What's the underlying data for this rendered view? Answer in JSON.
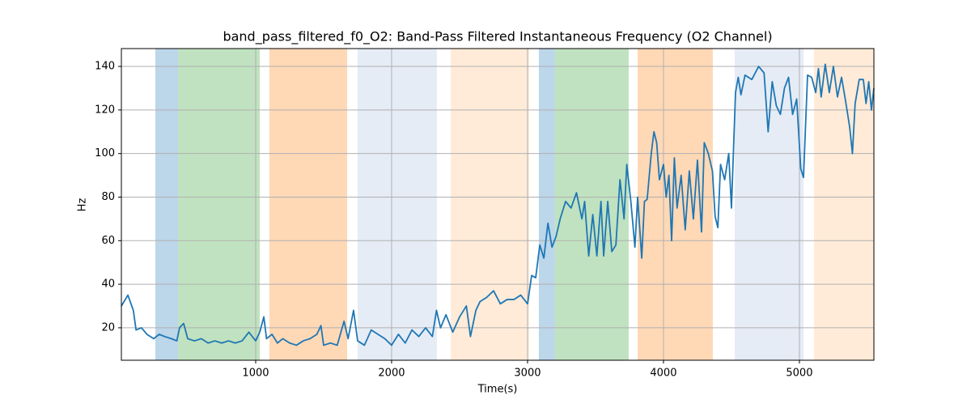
{
  "chart_data": {
    "type": "line",
    "title": "band_pass_filtered_f0_O2: Band-Pass Filtered Instantaneous Frequency (O2 Channel)",
    "x_label": "Time(s)",
    "y_label": "Hz",
    "xlim": [
      12,
      5548
    ],
    "ylim": [
      5.1,
      148.2
    ],
    "xticks": [
      1000,
      2000,
      3000,
      4000,
      5000
    ],
    "yticks": [
      20,
      40,
      60,
      80,
      100,
      120,
      140
    ],
    "grid": true,
    "spans": [
      {
        "start": 262,
        "end": 429,
        "color": "#bcd6ea"
      },
      {
        "start": 429,
        "end": 1030,
        "color": "#c0e2c0"
      },
      {
        "start": 1101,
        "end": 1673,
        "color": "#ffd8b6"
      },
      {
        "start": 1750,
        "end": 2333,
        "color": "#e5ecf6"
      },
      {
        "start": 2435,
        "end": 3012,
        "color": "#ffebd8"
      },
      {
        "start": 3083,
        "end": 3202,
        "color": "#bcd6ea"
      },
      {
        "start": 3202,
        "end": 3744,
        "color": "#c0e2c0"
      },
      {
        "start": 3810,
        "end": 4363,
        "color": "#ffd8b6"
      },
      {
        "start": 4524,
        "end": 5030,
        "color": "#e5ecf6"
      },
      {
        "start": 5107,
        "end": 5548,
        "color": "#ffebd8"
      }
    ],
    "x": [
      12,
      60,
      100,
      120,
      160,
      200,
      250,
      290,
      330,
      380,
      420,
      440,
      470,
      500,
      550,
      600,
      650,
      700,
      750,
      800,
      850,
      900,
      950,
      1000,
      1030,
      1060,
      1080,
      1120,
      1160,
      1200,
      1250,
      1300,
      1350,
      1400,
      1450,
      1480,
      1500,
      1550,
      1600,
      1650,
      1680,
      1720,
      1750,
      1800,
      1850,
      1900,
      1950,
      2000,
      2050,
      2100,
      2150,
      2200,
      2250,
      2300,
      2330,
      2360,
      2400,
      2450,
      2500,
      2550,
      2580,
      2620,
      2650,
      2700,
      2750,
      2800,
      2850,
      2900,
      2950,
      3000,
      3030,
      3060,
      3090,
      3120,
      3150,
      3180,
      3210,
      3240,
      3280,
      3320,
      3360,
      3400,
      3420,
      3450,
      3480,
      3510,
      3540,
      3560,
      3590,
      3620,
      3650,
      3680,
      3710,
      3730,
      3760,
      3790,
      3810,
      3840,
      3860,
      3880,
      3910,
      3930,
      3950,
      3970,
      4000,
      4020,
      4040,
      4060,
      4080,
      4100,
      4130,
      4160,
      4190,
      4220,
      4250,
      4280,
      4300,
      4330,
      4360,
      4380,
      4400,
      4420,
      4450,
      4480,
      4500,
      4530,
      4550,
      4570,
      4600,
      4650,
      4700,
      4740,
      4770,
      4800,
      4830,
      4860,
      4890,
      4920,
      4950,
      4980,
      5010,
      5030,
      5060,
      5090,
      5120,
      5140,
      5160,
      5190,
      5220,
      5250,
      5280,
      5310,
      5340,
      5370,
      5390,
      5410,
      5440,
      5470,
      5490,
      5510,
      5530,
      5548
    ],
    "series": [
      {
        "name": "band_pass_filtered_f0_O2",
        "color": "#1f77b4",
        "values": [
          30,
          35,
          28,
          19,
          20,
          17,
          15,
          17,
          16,
          15,
          14,
          20,
          22,
          15,
          14,
          15,
          13,
          14,
          13,
          14,
          13,
          14,
          18,
          14,
          18,
          25,
          15,
          17,
          13,
          15,
          13,
          12,
          14,
          15,
          17,
          21,
          12,
          13,
          12,
          23,
          15,
          28,
          14,
          12,
          19,
          17,
          15,
          12,
          17,
          13,
          19,
          16,
          20,
          16,
          28,
          20,
          26,
          18,
          25,
          30,
          16,
          28,
          32,
          34,
          37,
          31,
          33,
          33,
          35,
          31,
          44,
          43,
          58,
          52,
          68,
          57,
          62,
          70,
          78,
          75,
          82,
          70,
          78,
          53,
          72,
          53,
          78,
          53,
          78,
          55,
          58,
          88,
          70,
          95,
          78,
          57,
          80,
          52,
          78,
          79,
          100,
          110,
          105,
          88,
          95,
          80,
          90,
          60,
          98,
          75,
          90,
          65,
          92,
          70,
          97,
          64,
          105,
          100,
          92,
          71,
          66,
          95,
          88,
          100,
          75,
          128,
          135,
          127,
          136,
          134,
          140,
          137,
          110,
          133,
          122,
          118,
          130,
          135,
          118,
          125,
          93,
          89,
          136,
          135,
          128,
          139,
          126,
          141,
          128,
          140,
          126,
          135,
          124,
          112,
          100,
          123,
          134,
          134,
          123,
          133,
          120,
          130
        ]
      }
    ]
  }
}
